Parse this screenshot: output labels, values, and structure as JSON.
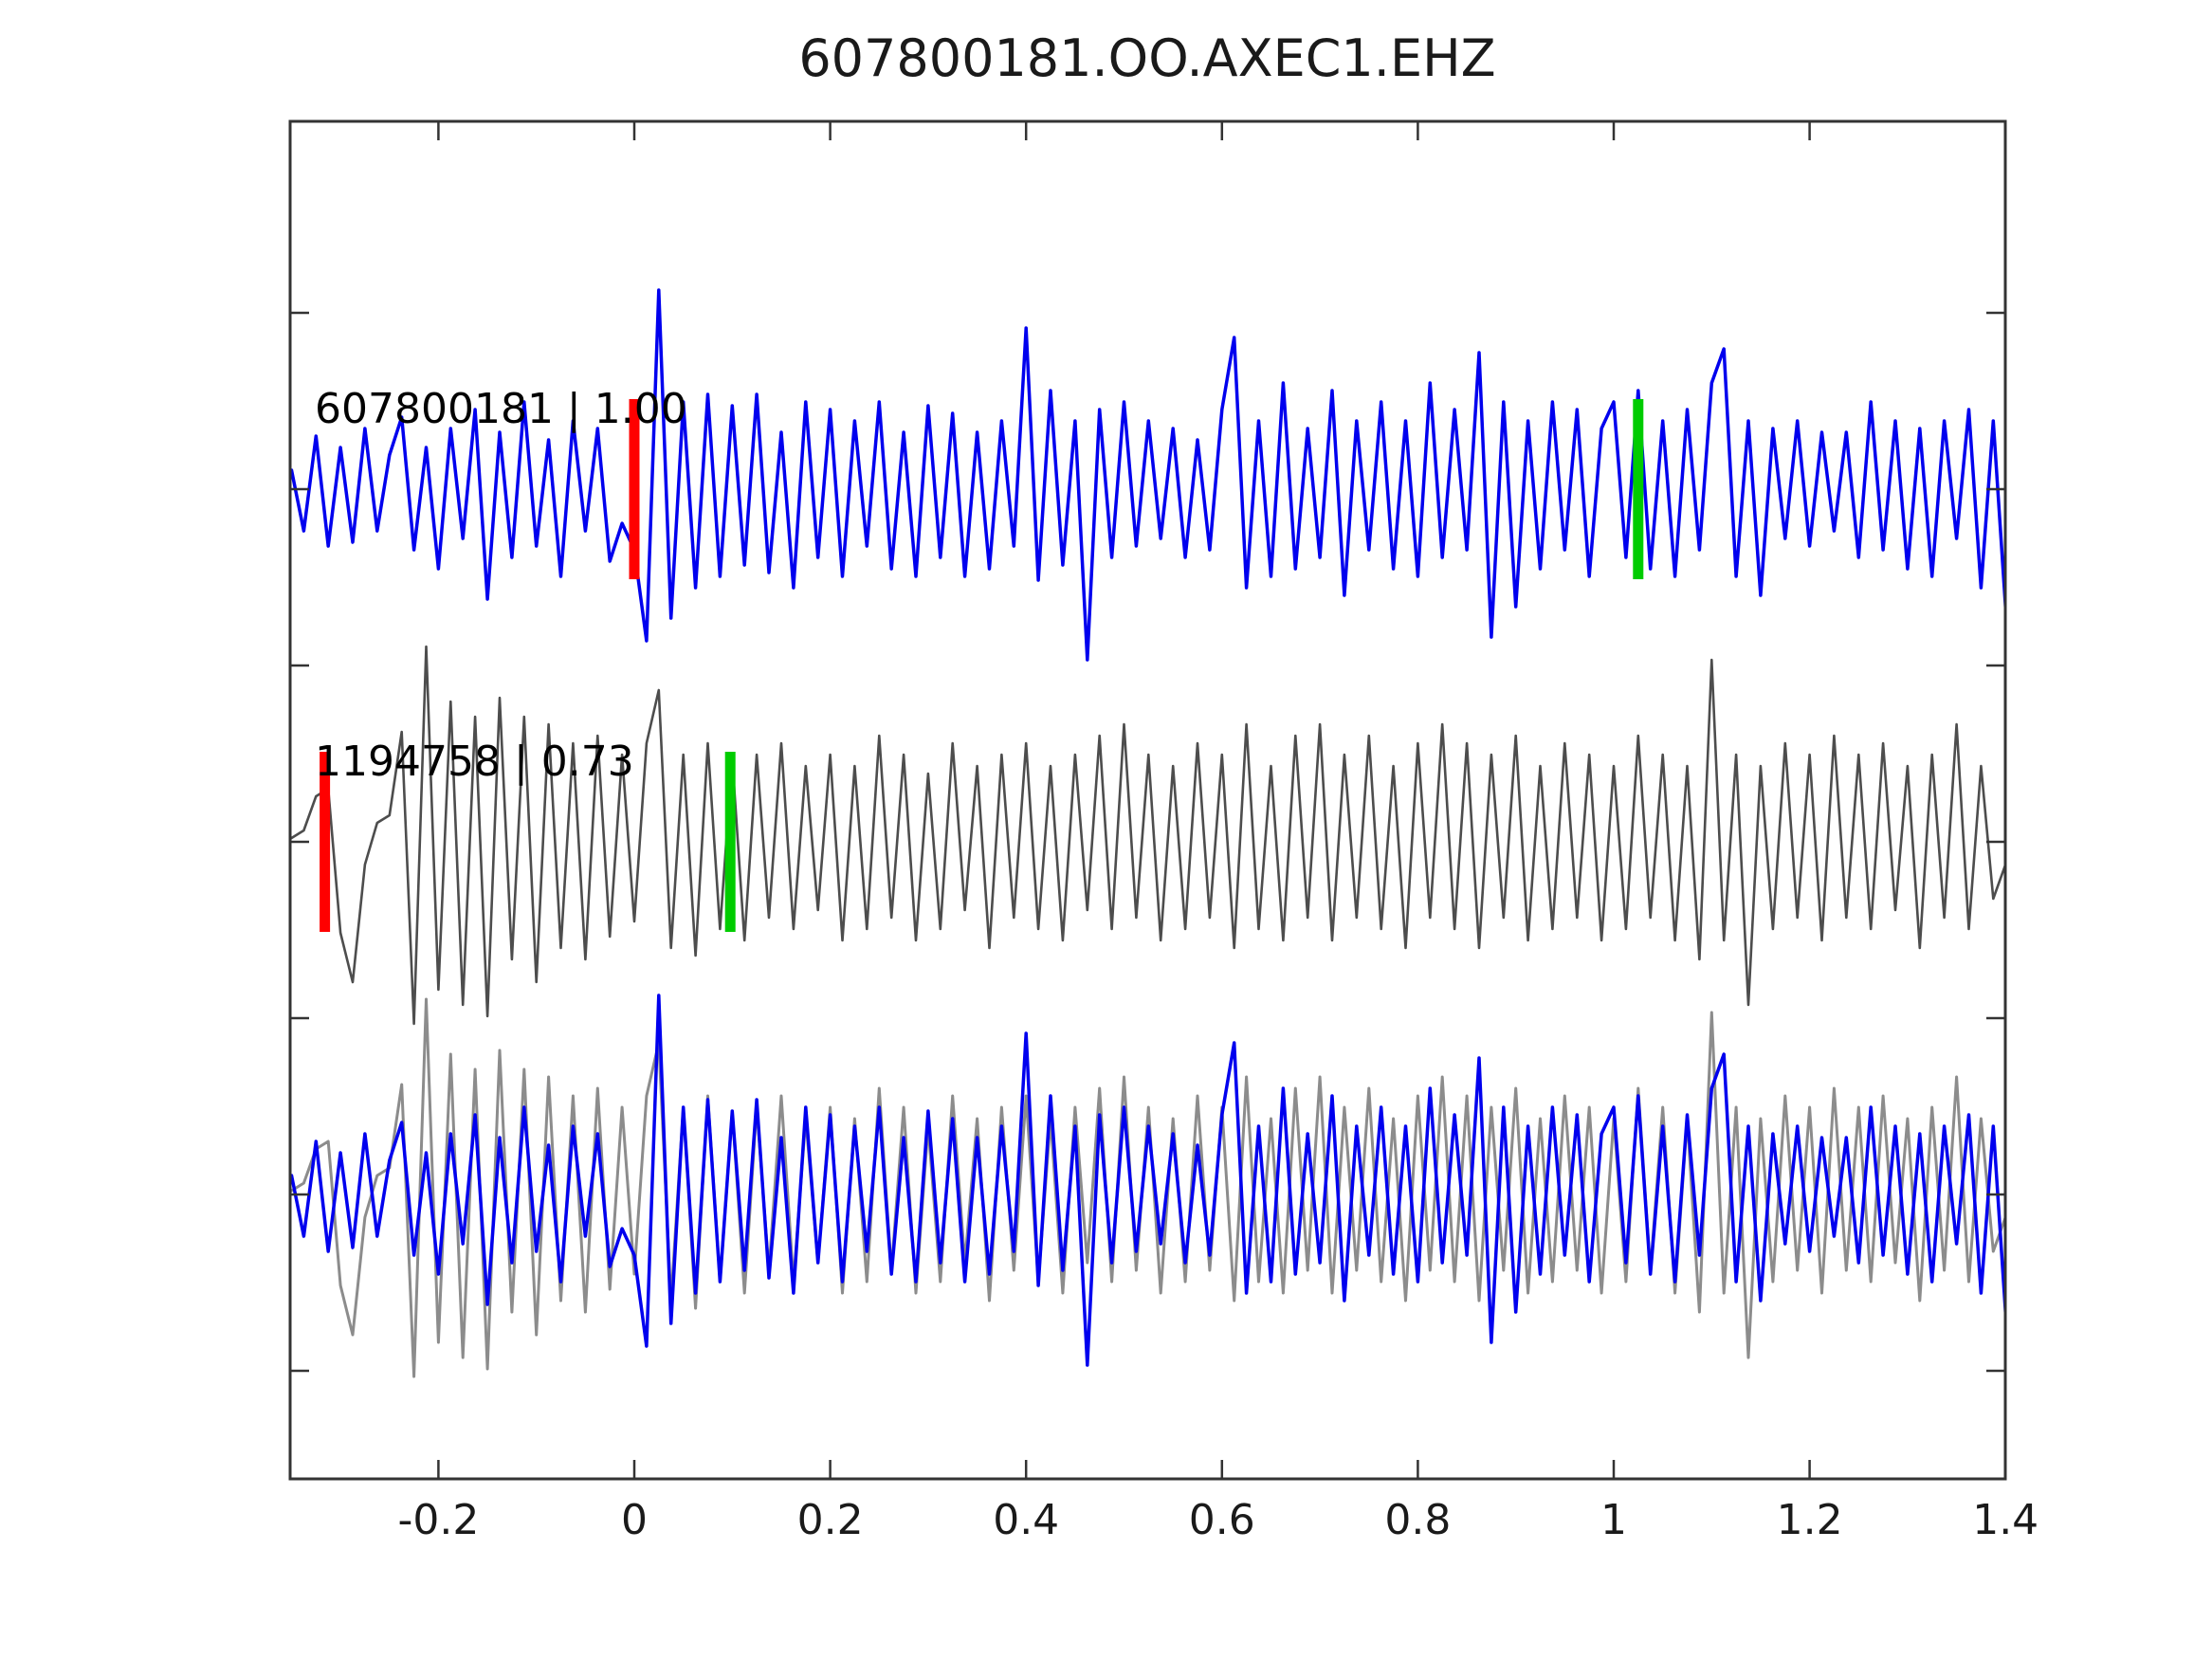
{
  "chart_data": {
    "type": "line",
    "title": "607800181.OO.AXEC1.EHZ",
    "xlabel": "",
    "ylabel": "",
    "xlim": [
      -0.35,
      1.4
    ],
    "grid": false,
    "x_start": -0.35,
    "x_step": 0.0125,
    "x_ticks": [
      {
        "value": -0.2,
        "label": "-0.2"
      },
      {
        "value": 0.0,
        "label": "0"
      },
      {
        "value": 0.2,
        "label": "0.2"
      },
      {
        "value": 0.4,
        "label": "0.4"
      },
      {
        "value": 0.6,
        "label": "0.6"
      },
      {
        "value": 0.8,
        "label": "0.8"
      },
      {
        "value": 1.0,
        "label": "1"
      },
      {
        "value": 1.2,
        "label": "1.2"
      },
      {
        "value": 1.4,
        "label": "1.4"
      }
    ],
    "colors": {
      "detection_blue": "#0000EE",
      "template_dark_gray": "#4D4D4D",
      "overlay_gray": "#8C8C8C",
      "pick_red": "#FF0000",
      "pick_green": "#00CC00",
      "axis": "#333333",
      "text": "#1a1a1a"
    },
    "panels": [
      {
        "name": "detection-trace",
        "label": "607800181 | 1.00",
        "traces": [
          {
            "series": "trace1",
            "color": "#0000EE",
            "width": 3.5
          }
        ],
        "picks": [
          {
            "time": 0.0,
            "color": "#FF0000"
          },
          {
            "time": 1.025,
            "color": "#00CC00"
          }
        ]
      },
      {
        "name": "template-trace",
        "label": "1194758 | 0.73",
        "traces": [
          {
            "series": "trace2",
            "color": "#4D4D4D",
            "width": 2.6
          }
        ],
        "picks": [
          {
            "time": -0.316,
            "color": "#FF0000"
          },
          {
            "time": 0.098,
            "color": "#00CC00"
          }
        ]
      },
      {
        "name": "overlay-traces",
        "label": "",
        "traces": [
          {
            "series": "trace2",
            "color": "#8C8C8C",
            "width": 3.0
          },
          {
            "series": "trace1",
            "color": "#0000EE",
            "width": 3.5
          }
        ],
        "picks": []
      }
    ],
    "series": {
      "trace1": [
        0.1,
        -0.22,
        0.28,
        -0.3,
        0.22,
        -0.28,
        0.32,
        -0.22,
        0.18,
        0.38,
        -0.32,
        0.22,
        -0.42,
        0.32,
        -0.26,
        0.42,
        -0.58,
        0.3,
        -0.36,
        0.46,
        -0.3,
        0.26,
        -0.46,
        0.36,
        -0.22,
        0.32,
        -0.38,
        -0.18,
        -0.32,
        -0.8,
        1.05,
        -0.68,
        0.46,
        -0.52,
        0.5,
        -0.46,
        0.44,
        -0.4,
        0.5,
        -0.44,
        0.3,
        -0.52,
        0.46,
        -0.36,
        0.42,
        -0.46,
        0.36,
        -0.3,
        0.46,
        -0.42,
        0.3,
        -0.46,
        0.44,
        -0.36,
        0.4,
        -0.46,
        0.3,
        -0.42,
        0.36,
        -0.3,
        0.85,
        -0.48,
        0.52,
        -0.4,
        0.36,
        -0.9,
        0.42,
        -0.36,
        0.46,
        -0.3,
        0.36,
        -0.26,
        0.32,
        -0.36,
        0.26,
        -0.32,
        0.42,
        0.8,
        -0.52,
        0.36,
        -0.46,
        0.56,
        -0.42,
        0.32,
        -0.36,
        0.52,
        -0.56,
        0.36,
        -0.32,
        0.46,
        -0.42,
        0.36,
        -0.46,
        0.56,
        -0.36,
        0.42,
        -0.32,
        0.72,
        -0.78,
        0.46,
        -0.62,
        0.36,
        -0.42,
        0.46,
        -0.32,
        0.42,
        -0.46,
        0.32,
        0.46,
        -0.36,
        0.52,
        -0.42,
        0.36,
        -0.46,
        0.42,
        -0.32,
        0.56,
        0.74,
        -0.46,
        0.36,
        -0.56,
        0.32,
        -0.26,
        0.36,
        -0.3,
        0.3,
        -0.22,
        0.3,
        -0.36,
        0.46,
        -0.32,
        0.36,
        -0.42,
        0.32,
        -0.46,
        0.36,
        -0.26,
        0.42,
        -0.52,
        0.36,
        -0.62
      ],
      "trace2": [
        0.02,
        0.06,
        0.24,
        0.28,
        -0.48,
        -0.74,
        -0.12,
        0.1,
        0.14,
        0.58,
        -0.96,
        1.03,
        -0.78,
        0.74,
        -0.86,
        0.66,
        -0.92,
        0.76,
        -0.62,
        0.66,
        -0.74,
        0.62,
        -0.56,
        0.52,
        -0.62,
        0.56,
        -0.5,
        0.46,
        -0.42,
        0.52,
        0.8,
        -0.56,
        0.46,
        -0.6,
        0.52,
        -0.46,
        0.44,
        -0.52,
        0.46,
        -0.4,
        0.52,
        -0.46,
        0.4,
        -0.36,
        0.46,
        -0.52,
        0.4,
        -0.46,
        0.56,
        -0.4,
        0.46,
        -0.52,
        0.36,
        -0.46,
        0.52,
        -0.36,
        0.4,
        -0.56,
        0.46,
        -0.4,
        0.52,
        -0.46,
        0.4,
        -0.52,
        0.46,
        -0.36,
        0.56,
        -0.46,
        0.62,
        -0.4,
        0.46,
        -0.52,
        0.4,
        -0.46,
        0.52,
        -0.4,
        0.46,
        -0.56,
        0.62,
        -0.46,
        0.4,
        -0.52,
        0.56,
        -0.4,
        0.62,
        -0.52,
        0.46,
        -0.4,
        0.56,
        -0.46,
        0.4,
        -0.56,
        0.52,
        -0.4,
        0.62,
        -0.46,
        0.52,
        -0.56,
        0.46,
        -0.4,
        0.56,
        -0.52,
        0.4,
        -0.46,
        0.52,
        -0.4,
        0.46,
        -0.52,
        0.4,
        -0.46,
        0.56,
        -0.4,
        0.46,
        -0.52,
        0.4,
        -0.62,
        0.96,
        -0.52,
        0.46,
        -0.86,
        0.4,
        -0.46,
        0.52,
        -0.4,
        0.46,
        -0.52,
        0.56,
        -0.4,
        0.46,
        -0.46,
        0.52,
        -0.36,
        0.4,
        -0.56,
        0.46,
        -0.4,
        0.62,
        -0.46,
        0.4,
        -0.3,
        -0.12
      ]
    }
  }
}
